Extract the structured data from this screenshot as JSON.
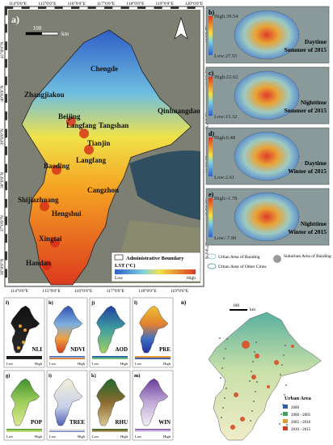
{
  "main_map": {
    "label": "a)",
    "longitudes_top": [
      "114°0'0\"E",
      "115°0'0\"E",
      "116°0'0\"E",
      "117°0'0\"E",
      "118°0'0\"E",
      "119°0'0\"E",
      "120°0'0\"E"
    ],
    "longitudes_bottom": [
      "114°0'0\"E",
      "115°0'0\"E",
      "116°0'0\"E",
      "117°0'0\"E",
      "118°0'0\"E",
      "119°0'0\"E"
    ],
    "latitudes_left": [
      "41°0'0\"N",
      "40°0'0\"N",
      "39°0'0\"N",
      "38°0'0\"N",
      "37°0'0\"N",
      "36°0'0\"N"
    ],
    "latitudes_right": [
      "42°0'0\"N",
      "41°0'0\"N",
      "40°0'0\"N",
      "39°0'0\"N",
      "38°0'0\"N",
      "37°0'0\"N"
    ],
    "cities": [
      "Chengde",
      "Zhangjiakou",
      "Qinhuangdao",
      "Beijing",
      "Langfang",
      "Tangshan",
      "Tianjin",
      "Baoding",
      "Langfang",
      "Cangzhou",
      "Shijiazhuang",
      "Hengshui",
      "Xingtai",
      "Handan"
    ],
    "scale": {
      "value": "100",
      "unit": "km"
    },
    "legend": {
      "boundary": "Administrative Boundary",
      "title": "LST (°C)",
      "low": "Low",
      "high": "High"
    }
  },
  "insets": [
    {
      "label": "b)",
      "high": "High:39.54",
      "low": "Low:27.55",
      "time": "Daytime",
      "season": "Summer of 2015"
    },
    {
      "label": "c)",
      "high": "High:22.62",
      "low": "Low:15.32",
      "time": "Nighttime",
      "season": "Summer of 2015"
    },
    {
      "label": "d)",
      "high": "High:6.48",
      "low": "Low:2.61",
      "time": "Daytime",
      "season": "Winter of 2015"
    },
    {
      "label": "e)",
      "high": "High:-1.78",
      "low": "Low:-7.90",
      "time": "Nighttime",
      "season": "Winter of 2015"
    }
  ],
  "inset_legend": [
    "Urban Area of Baoding",
    "Suburban Area of Baoding",
    "Urban Area of Other Cities"
  ],
  "factor_panels": [
    {
      "label": "f)",
      "name": "NLI",
      "low": "Low",
      "high": "High"
    },
    {
      "label": "h)",
      "name": "NDVI",
      "low": "Low",
      "high": "High"
    },
    {
      "label": "j)",
      "name": "AOD",
      "low": "Low",
      "high": "High"
    },
    {
      "label": "l)",
      "name": "PRE",
      "low": "Low",
      "high": "High"
    },
    {
      "label": "g)",
      "name": "POP",
      "low": "Low",
      "high": "High"
    },
    {
      "label": "i)",
      "name": "TREE",
      "low": "Low",
      "high": "High"
    },
    {
      "label": "k)",
      "name": "RHU",
      "low": "Low",
      "high": "High"
    },
    {
      "label": "m)",
      "name": "WIN",
      "low": "Low",
      "high": "High"
    }
  ],
  "urban_map": {
    "label": "n)",
    "scale": {
      "value": "100",
      "unit": "km"
    },
    "legend_title": "Urban Area",
    "legend": [
      "2000",
      "2000 - 2005",
      "2005 - 2010",
      "2010 - 2015"
    ]
  }
}
